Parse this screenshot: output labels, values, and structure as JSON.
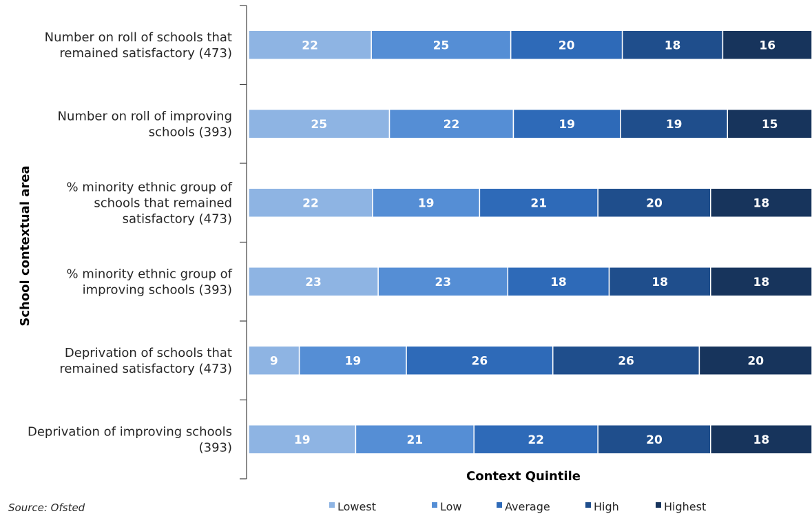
{
  "chart_data": {
    "type": "bar",
    "orientation": "horizontal",
    "stacked": true,
    "percent_stacked": true,
    "categories": [
      [
        "Number on roll of schools that",
        "remained satisfactory (473)"
      ],
      [
        "Number on roll of improving",
        "schools (393)"
      ],
      [
        "% minority ethnic group of",
        "schools that remained",
        "satisfactory (473)"
      ],
      [
        "% minority ethnic group of",
        "improving schools (393)"
      ],
      [
        "Deprivation of schools that",
        "remained satisfactory (473)"
      ],
      [
        "Deprivation of improving schools",
        "(393)"
      ]
    ],
    "series": [
      {
        "name": "Lowest",
        "color": "#8eb4e3",
        "values": [
          22,
          25,
          22,
          23,
          9,
          19
        ]
      },
      {
        "name": "Low",
        "color": "#558ed5",
        "values": [
          25,
          22,
          19,
          23,
          19,
          21
        ]
      },
      {
        "name": "Average",
        "color": "#2e6ab8",
        "values": [
          20,
          19,
          21,
          18,
          26,
          22
        ]
      },
      {
        "name": "High",
        "color": "#1f4e8c",
        "values": [
          18,
          19,
          20,
          18,
          26,
          20
        ]
      },
      {
        "name": "Highest",
        "color": "#17345c",
        "values": [
          16,
          15,
          18,
          18,
          20,
          18
        ]
      }
    ],
    "xlabel": "Context Quintile",
    "ylabel": "School contextual area",
    "legend_position": "bottom",
    "grid": false
  },
  "source": "Source: Ofsted"
}
